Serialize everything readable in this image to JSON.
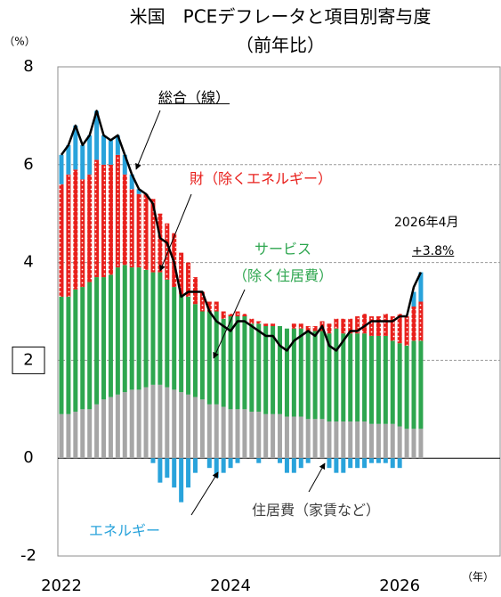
{
  "chart_data": {
    "type": "bar",
    "title": "米国　PCEデフレータと項目別寄与度",
    "subtitle": "（前年比）",
    "y_label": "（%）",
    "x_label": "（年）",
    "annotations": [
      "2026年4月",
      "+3.8%"
    ],
    "categories": [
      "2022",
      null,
      null,
      null,
      null,
      null,
      null,
      null,
      null,
      null,
      null,
      null,
      null,
      null,
      null,
      null,
      null,
      null,
      null,
      null,
      null,
      null,
      null,
      null,
      "2024",
      null,
      null,
      null,
      null,
      null,
      null,
      null,
      null,
      null,
      null,
      null,
      null,
      null,
      null,
      null,
      null,
      null,
      null,
      null,
      null,
      null,
      null,
      null,
      "2026",
      null,
      null,
      null
    ],
    "series": [
      {
        "name": "住居費（家賃など）",
        "color": "#a6a6a6",
        "values": [
          0.9,
          0.9,
          0.95,
          1.0,
          1.0,
          1.1,
          1.2,
          1.25,
          1.3,
          1.35,
          1.4,
          1.4,
          1.45,
          1.5,
          1.5,
          1.45,
          1.4,
          1.35,
          1.3,
          1.25,
          1.2,
          1.1,
          1.1,
          1.05,
          1.0,
          1.0,
          1.0,
          0.95,
          0.95,
          0.9,
          0.9,
          0.9,
          0.85,
          0.85,
          0.85,
          0.8,
          0.8,
          0.8,
          0.75,
          0.75,
          0.75,
          0.75,
          0.75,
          0.75,
          0.7,
          0.7,
          0.7,
          0.7,
          0.65,
          0.6,
          0.6,
          0.6
        ]
      },
      {
        "name": "サービス\n（除く住居費）",
        "color": "#2ea64f",
        "values": [
          2.4,
          2.4,
          2.5,
          2.5,
          2.6,
          2.6,
          2.5,
          2.5,
          2.6,
          2.6,
          2.5,
          2.5,
          2.4,
          2.3,
          2.3,
          2.2,
          2.1,
          2.0,
          2.0,
          1.9,
          1.8,
          1.9,
          1.9,
          1.8,
          1.9,
          1.9,
          1.9,
          1.8,
          1.8,
          1.8,
          1.8,
          1.8,
          1.8,
          1.8,
          1.8,
          1.8,
          1.8,
          1.8,
          1.8,
          1.9,
          1.8,
          1.8,
          1.8,
          1.8,
          1.8,
          1.8,
          1.8,
          1.7,
          1.7,
          1.7,
          1.8,
          1.8
        ]
      },
      {
        "name": "財（除くエネルギー）",
        "color": "#e8201c",
        "values": [
          2.3,
          2.5,
          2.45,
          2.2,
          2.2,
          2.4,
          2.3,
          2.25,
          2.3,
          1.85,
          1.6,
          1.5,
          1.55,
          1.5,
          1.2,
          1.15,
          1.1,
          0.85,
          0.7,
          0.55,
          0.4,
          0.2,
          0.2,
          0.15,
          0.05,
          0.1,
          0.05,
          0.1,
          0.05,
          0.05,
          0.05,
          0.0,
          0.0,
          0.1,
          0.1,
          0.1,
          0.1,
          0.2,
          0.2,
          0.2,
          0.3,
          0.3,
          0.35,
          0.4,
          0.4,
          0.4,
          0.45,
          0.5,
          0.6,
          0.6,
          0.7,
          0.8
        ]
      },
      {
        "name": "エネルギー",
        "color": "#29a3db",
        "values": [
          0.6,
          0.6,
          0.9,
          0.7,
          0.8,
          1.0,
          0.6,
          0.5,
          0.4,
          0.4,
          0.3,
          0.1,
          0,
          -0.1,
          -0.5,
          -0.4,
          -0.6,
          -0.9,
          -0.6,
          -0.3,
          0,
          -0.2,
          -0.4,
          -0.3,
          -0.2,
          -0.1,
          0,
          0,
          -0.1,
          0,
          0,
          -0.1,
          -0.3,
          -0.3,
          -0.2,
          -0.1,
          0,
          0,
          -0.2,
          -0.3,
          -0.3,
          -0.2,
          -0.2,
          -0.2,
          -0.1,
          -0.1,
          -0.1,
          -0.2,
          -0.2,
          0,
          0.3,
          0.6
        ]
      },
      {
        "name": "総合（線）",
        "type": "line",
        "color": "#000000",
        "values": [
          6.2,
          6.4,
          6.8,
          6.4,
          6.6,
          7.1,
          6.6,
          6.5,
          6.6,
          6.2,
          5.8,
          5.5,
          5.4,
          5.2,
          4.5,
          4.4,
          4.0,
          3.3,
          3.4,
          3.4,
          3.4,
          3.0,
          2.8,
          2.7,
          2.6,
          2.8,
          2.8,
          2.7,
          2.6,
          2.5,
          2.5,
          2.3,
          2.2,
          2.4,
          2.5,
          2.6,
          2.5,
          2.7,
          2.3,
          2.2,
          2.4,
          2.6,
          2.6,
          2.7,
          2.8,
          2.8,
          2.8,
          2.8,
          2.9,
          2.9,
          3.5,
          3.8
        ]
      }
    ],
    "ylim": [
      -2,
      8
    ],
    "yticks": [
      -2,
      0,
      2,
      4,
      6,
      8
    ],
    "grid": true,
    "boxed_tick": 2
  }
}
